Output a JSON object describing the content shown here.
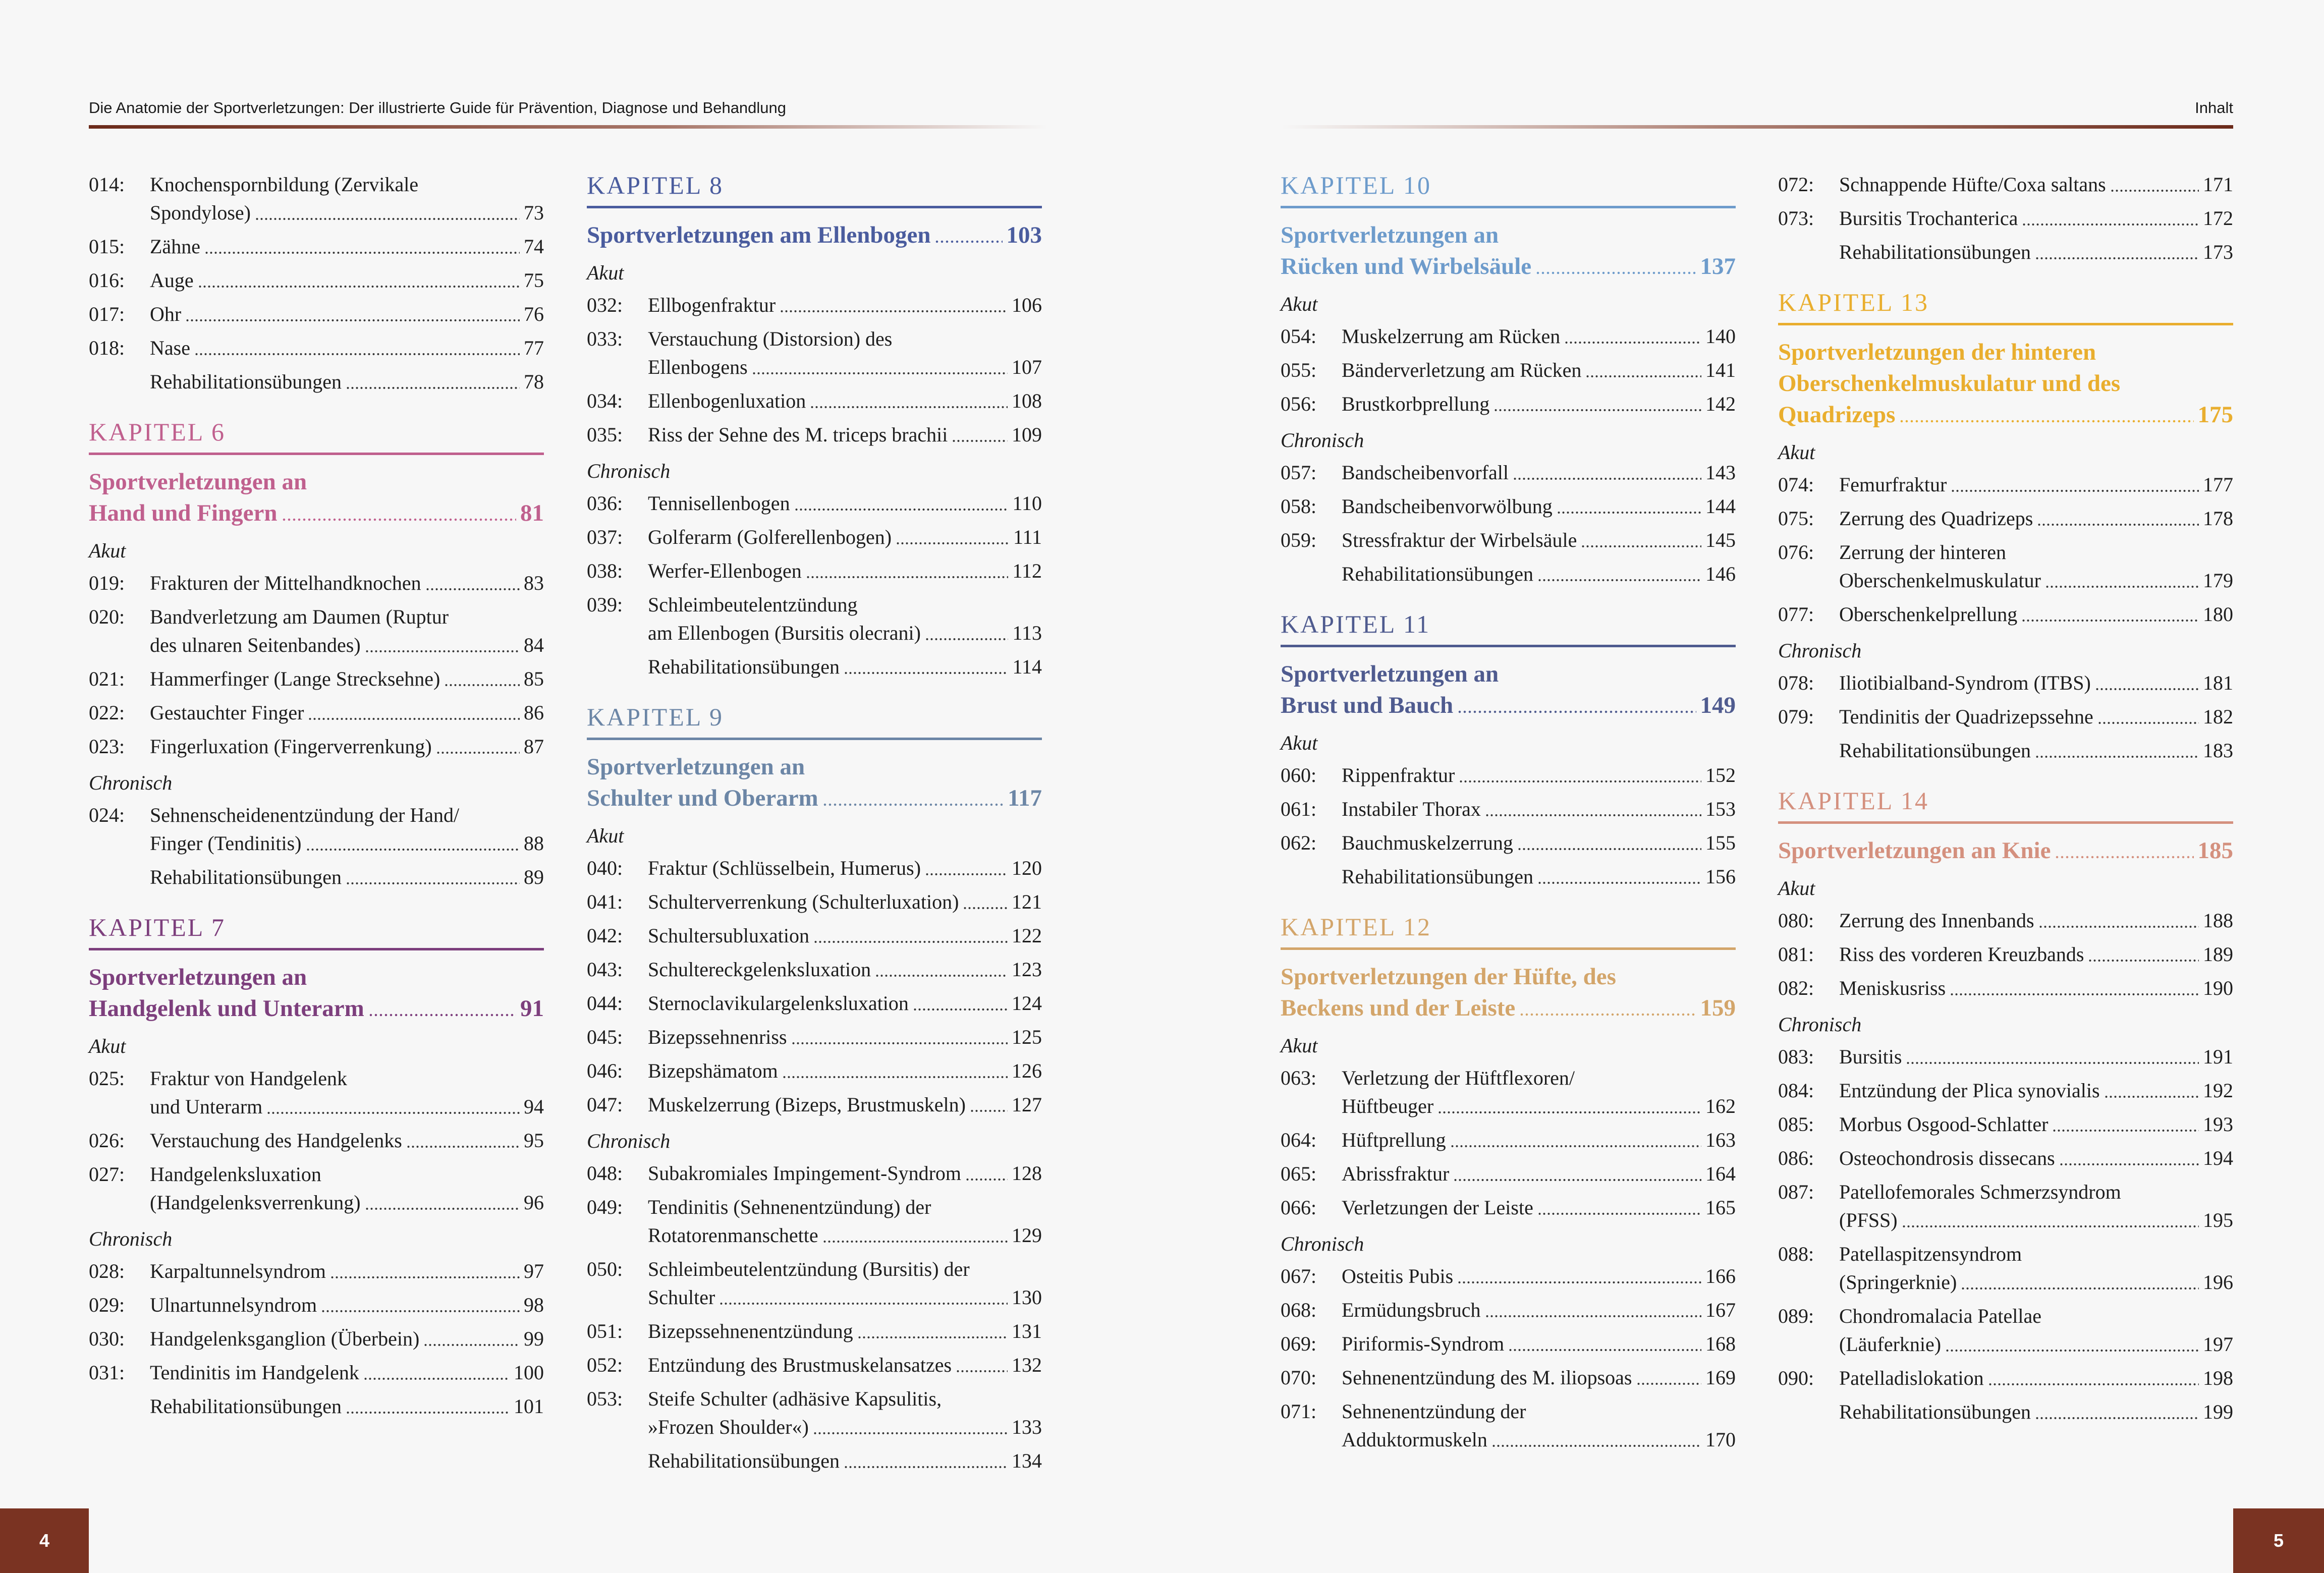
{
  "header": {
    "book_title": "Die Anatomie der Sportverletzungen: Der illustrierte Guide für Prävention, Diagnose und Behandlung",
    "section": "Inhalt",
    "rule_color": "#6b2a1a"
  },
  "page_numbers": {
    "left": "4",
    "right": "5"
  },
  "columns": [
    {
      "blocks": [
        {
          "type": "entry",
          "num": "014:",
          "lines": [
            "Knochenspornbildung (Zervikale",
            "Spondylose)"
          ],
          "page": "73"
        },
        {
          "type": "entry",
          "num": "015:",
          "lines": [
            "Zähne"
          ],
          "page": "74"
        },
        {
          "type": "entry",
          "num": "016:",
          "lines": [
            "Auge"
          ],
          "page": "75"
        },
        {
          "type": "entry",
          "num": "017:",
          "lines": [
            "Ohr"
          ],
          "page": "76"
        },
        {
          "type": "entry",
          "num": "018:",
          "lines": [
            "Nase"
          ],
          "page": "77"
        },
        {
          "type": "entry",
          "num": "",
          "lines": [
            "Rehabilitationsübungen"
          ],
          "page": "78"
        },
        {
          "type": "chapter",
          "label": "KAPITEL 6",
          "color": "#c0608e",
          "title": [
            "Sportverletzungen an",
            "Hand und Fingern"
          ],
          "page": "81"
        },
        {
          "type": "sub",
          "label": "Akut"
        },
        {
          "type": "entry",
          "num": "019:",
          "lines": [
            "Frakturen der Mittelhandknochen"
          ],
          "page": "83"
        },
        {
          "type": "entry",
          "num": "020:",
          "lines": [
            "Bandverletzung am Daumen (Ruptur",
            "des ulnaren Seitenbandes)"
          ],
          "page": "84"
        },
        {
          "type": "entry",
          "num": "021:",
          "lines": [
            "Hammerfinger (Lange Strecksehne)"
          ],
          "page": "85"
        },
        {
          "type": "entry",
          "num": "022:",
          "lines": [
            "Gestauchter Finger"
          ],
          "page": "86"
        },
        {
          "type": "entry",
          "num": "023:",
          "lines": [
            "Fingerluxation (Fingerverrenkung)"
          ],
          "page": "87"
        },
        {
          "type": "sub",
          "label": "Chronisch"
        },
        {
          "type": "entry",
          "num": "024:",
          "lines": [
            "Sehnenscheidenentzündung der Hand/",
            "Finger (Tendinitis)"
          ],
          "page": "88"
        },
        {
          "type": "entry",
          "num": "",
          "lines": [
            "Rehabilitationsübungen"
          ],
          "page": "89"
        },
        {
          "type": "chapter",
          "label": "KAPITEL 7",
          "color": "#7d3f7d",
          "title": [
            "Sportverletzungen an",
            "Handgelenk und Unterarm"
          ],
          "page": "91"
        },
        {
          "type": "sub",
          "label": "Akut"
        },
        {
          "type": "entry",
          "num": "025:",
          "lines": [
            "Fraktur von Handgelenk",
            "und Unterarm"
          ],
          "page": "94"
        },
        {
          "type": "entry",
          "num": "026:",
          "lines": [
            "Verstauchung des Handgelenks"
          ],
          "page": "95"
        },
        {
          "type": "entry",
          "num": "027:",
          "lines": [
            "Handgelenksluxation",
            "(Handgelenksverrenkung)"
          ],
          "page": "96"
        },
        {
          "type": "sub",
          "label": "Chronisch"
        },
        {
          "type": "entry",
          "num": "028:",
          "lines": [
            "Karpaltunnelsyndrom"
          ],
          "page": "97"
        },
        {
          "type": "entry",
          "num": "029:",
          "lines": [
            "Ulnartunnelsyndrom"
          ],
          "page": "98"
        },
        {
          "type": "entry",
          "num": "030:",
          "lines": [
            "Handgelenksganglion (Überbein)"
          ],
          "page": "99"
        },
        {
          "type": "entry",
          "num": "031:",
          "lines": [
            "Tendinitis im Handgelenk"
          ],
          "page": "100"
        },
        {
          "type": "entry",
          "num": "",
          "lines": [
            "Rehabilitationsübungen"
          ],
          "page": "101"
        }
      ]
    },
    {
      "blocks": [
        {
          "type": "chapter",
          "label": "KAPITEL 8",
          "color": "#4a5c9e",
          "title": [
            "Sportverletzungen am Ellenbogen"
          ],
          "page": "103"
        },
        {
          "type": "sub",
          "label": "Akut"
        },
        {
          "type": "entry",
          "num": "032:",
          "lines": [
            "Ellbogenfraktur"
          ],
          "page": "106"
        },
        {
          "type": "entry",
          "num": "033:",
          "lines": [
            "Verstauchung (Distorsion) des",
            "Ellenbogens"
          ],
          "page": "107"
        },
        {
          "type": "entry",
          "num": "034:",
          "lines": [
            "Ellenbogenluxation"
          ],
          "page": "108"
        },
        {
          "type": "entry",
          "num": "035:",
          "lines": [
            "Riss der Sehne des M. triceps brachii"
          ],
          "page": "109"
        },
        {
          "type": "sub",
          "label": "Chronisch"
        },
        {
          "type": "entry",
          "num": "036:",
          "lines": [
            "Tennisellenbogen"
          ],
          "page": "110"
        },
        {
          "type": "entry",
          "num": "037:",
          "lines": [
            "Golferarm (Golferellenbogen)"
          ],
          "page": "111"
        },
        {
          "type": "entry",
          "num": "038:",
          "lines": [
            "Werfer-Ellenbogen"
          ],
          "page": "112"
        },
        {
          "type": "entry",
          "num": "039:",
          "lines": [
            "Schleimbeutelentzündung",
            "am Ellenbogen (Bursitis olecrani)"
          ],
          "page": "113"
        },
        {
          "type": "entry",
          "num": "",
          "lines": [
            "Rehabilitationsübungen"
          ],
          "page": "114"
        },
        {
          "type": "chapter",
          "label": "KAPITEL 9",
          "color": "#6c86a6",
          "title": [
            "Sportverletzungen an",
            "Schulter und Oberarm"
          ],
          "page": "117"
        },
        {
          "type": "sub",
          "label": "Akut"
        },
        {
          "type": "entry",
          "num": "040:",
          "lines": [
            "Fraktur (Schlüsselbein, Humerus)"
          ],
          "page": "120"
        },
        {
          "type": "entry",
          "num": "041:",
          "lines": [
            "Schulterverrenkung (Schulterluxation)"
          ],
          "page": "121"
        },
        {
          "type": "entry",
          "num": "042:",
          "lines": [
            "Schultersubluxation"
          ],
          "page": "122"
        },
        {
          "type": "entry",
          "num": "043:",
          "lines": [
            "Schultereckgelenksluxation"
          ],
          "page": "123"
        },
        {
          "type": "entry",
          "num": "044:",
          "lines": [
            "Sternoclavikulargelenksluxation"
          ],
          "page": "124"
        },
        {
          "type": "entry",
          "num": "045:",
          "lines": [
            "Bizepssehnenriss"
          ],
          "page": "125"
        },
        {
          "type": "entry",
          "num": "046:",
          "lines": [
            "Bizepshämatom"
          ],
          "page": "126"
        },
        {
          "type": "entry",
          "num": "047:",
          "lines": [
            "Muskelzerrung (Bizeps, Brustmuskeln)"
          ],
          "page": "127"
        },
        {
          "type": "sub",
          "label": "Chronisch"
        },
        {
          "type": "entry",
          "num": "048:",
          "lines": [
            "Subakromiales Impingement-Syndrom"
          ],
          "page": "128"
        },
        {
          "type": "entry",
          "num": "049:",
          "lines": [
            "Tendinitis (Sehnenentzündung) der",
            "Rotatorenmanschette"
          ],
          "page": "129"
        },
        {
          "type": "entry",
          "num": "050:",
          "lines": [
            "Schleimbeutelentzündung (Bursitis) der",
            "Schulter"
          ],
          "page": "130"
        },
        {
          "type": "entry",
          "num": "051:",
          "lines": [
            "Bizepssehnenentzündung"
          ],
          "page": "131"
        },
        {
          "type": "entry",
          "num": "052:",
          "lines": [
            "Entzündung des Brustmuskelansatzes"
          ],
          "page": "132"
        },
        {
          "type": "entry",
          "num": "053:",
          "lines": [
            "Steife Schulter (adhäsive Kapsulitis,",
            "»Frozen Shoulder«)"
          ],
          "page": "133"
        },
        {
          "type": "entry",
          "num": "",
          "lines": [
            "Rehabilitationsübungen"
          ],
          "page": "134"
        }
      ]
    },
    {
      "blocks": [
        {
          "type": "chapter",
          "label": "KAPITEL 10",
          "color": "#6d9bcb",
          "title": [
            "Sportverletzungen an",
            "Rücken und Wirbelsäule"
          ],
          "page": "137"
        },
        {
          "type": "sub",
          "label": "Akut"
        },
        {
          "type": "entry",
          "num": "054:",
          "lines": [
            "Muskelzerrung am Rücken"
          ],
          "page": "140"
        },
        {
          "type": "entry",
          "num": "055:",
          "lines": [
            "Bänderverletzung am Rücken"
          ],
          "page": "141"
        },
        {
          "type": "entry",
          "num": "056:",
          "lines": [
            "Brustkorbprellung"
          ],
          "page": "142"
        },
        {
          "type": "sub",
          "label": "Chronisch"
        },
        {
          "type": "entry",
          "num": "057:",
          "lines": [
            "Bandscheibenvorfall"
          ],
          "page": "143"
        },
        {
          "type": "entry",
          "num": "058:",
          "lines": [
            "Bandscheibenvorwölbung"
          ],
          "page": "144"
        },
        {
          "type": "entry",
          "num": "059:",
          "lines": [
            "Stressfraktur der Wirbelsäule"
          ],
          "page": "145"
        },
        {
          "type": "entry",
          "num": "",
          "lines": [
            "Rehabilitationsübungen"
          ],
          "page": "146"
        },
        {
          "type": "chapter",
          "label": "KAPITEL 11",
          "color": "#4f5b8f",
          "title": [
            "Sportverletzungen an",
            "Brust und Bauch"
          ],
          "page": "149"
        },
        {
          "type": "sub",
          "label": "Akut"
        },
        {
          "type": "entry",
          "num": "060:",
          "lines": [
            "Rippenfraktur"
          ],
          "page": "152"
        },
        {
          "type": "entry",
          "num": "061:",
          "lines": [
            "Instabiler Thorax"
          ],
          "page": "153"
        },
        {
          "type": "entry",
          "num": "062:",
          "lines": [
            "Bauchmuskelzerrung"
          ],
          "page": "155"
        },
        {
          "type": "entry",
          "num": "",
          "lines": [
            "Rehabilitationsübungen"
          ],
          "page": "156"
        },
        {
          "type": "chapter",
          "label": "KAPITEL 12",
          "color": "#d3a56a",
          "title": [
            "Sportverletzungen der Hüfte, des",
            "Beckens und der Leiste"
          ],
          "page": "159"
        },
        {
          "type": "sub",
          "label": "Akut"
        },
        {
          "type": "entry",
          "num": "063:",
          "lines": [
            "Verletzung der Hüftflexoren/",
            "Hüftbeuger"
          ],
          "page": "162"
        },
        {
          "type": "entry",
          "num": "064:",
          "lines": [
            "Hüftprellung"
          ],
          "page": "163"
        },
        {
          "type": "entry",
          "num": "065:",
          "lines": [
            "Abrissfraktur"
          ],
          "page": "164"
        },
        {
          "type": "entry",
          "num": "066:",
          "lines": [
            "Verletzungen der Leiste"
          ],
          "page": "165"
        },
        {
          "type": "sub",
          "label": "Chronisch"
        },
        {
          "type": "entry",
          "num": "067:",
          "lines": [
            "Osteitis Pubis"
          ],
          "page": "166"
        },
        {
          "type": "entry",
          "num": "068:",
          "lines": [
            "Ermüdungsbruch"
          ],
          "page": "167"
        },
        {
          "type": "entry",
          "num": "069:",
          "lines": [
            "Piriformis-Syndrom"
          ],
          "page": "168"
        },
        {
          "type": "entry",
          "num": "070:",
          "lines": [
            "Sehnenentzündung des M. iliopsoas"
          ],
          "page": "169"
        },
        {
          "type": "entry",
          "num": "071:",
          "lines": [
            "Sehnenentzündung der",
            "Adduktormuskeln"
          ],
          "page": "170"
        }
      ]
    },
    {
      "blocks": [
        {
          "type": "entry",
          "num": "072:",
          "lines": [
            "Schnappende Hüfte/Coxa saltans"
          ],
          "page": "171"
        },
        {
          "type": "entry",
          "num": "073:",
          "lines": [
            "Bursitis Trochanterica"
          ],
          "page": "172"
        },
        {
          "type": "entry",
          "num": "",
          "lines": [
            "Rehabilitationsübungen"
          ],
          "page": "173"
        },
        {
          "type": "chapter",
          "label": "KAPITEL 13",
          "color": "#e9ae2e",
          "title": [
            "Sportverletzungen der hinteren",
            "Oberschenkelmuskulatur und des",
            "Quadrizeps"
          ],
          "page": "175"
        },
        {
          "type": "sub",
          "label": "Akut"
        },
        {
          "type": "entry",
          "num": "074:",
          "lines": [
            "Femurfraktur"
          ],
          "page": "177"
        },
        {
          "type": "entry",
          "num": "075:",
          "lines": [
            "Zerrung des Quadrizeps"
          ],
          "page": "178"
        },
        {
          "type": "entry",
          "num": "076:",
          "lines": [
            "Zerrung der hinteren",
            "Oberschenkelmuskulatur"
          ],
          "page": "179"
        },
        {
          "type": "entry",
          "num": "077:",
          "lines": [
            "Oberschenkelprellung"
          ],
          "page": "180"
        },
        {
          "type": "sub",
          "label": "Chronisch"
        },
        {
          "type": "entry",
          "num": "078:",
          "lines": [
            "Iliotibialband-Syndrom (ITBS)"
          ],
          "page": "181"
        },
        {
          "type": "entry",
          "num": "079:",
          "lines": [
            "Tendinitis der Quadrizepssehne"
          ],
          "page": "182"
        },
        {
          "type": "entry",
          "num": "",
          "lines": [
            "Rehabilitationsübungen"
          ],
          "page": "183"
        },
        {
          "type": "chapter",
          "label": "KAPITEL 14",
          "color": "#d4907e",
          "title": [
            "Sportverletzungen an Knie"
          ],
          "page": "185"
        },
        {
          "type": "sub",
          "label": "Akut"
        },
        {
          "type": "entry",
          "num": "080:",
          "lines": [
            "Zerrung des Innenbands"
          ],
          "page": "188"
        },
        {
          "type": "entry",
          "num": "081:",
          "lines": [
            "Riss des vorderen Kreuzbands"
          ],
          "page": "189"
        },
        {
          "type": "entry",
          "num": "082:",
          "lines": [
            "Meniskusriss"
          ],
          "page": "190"
        },
        {
          "type": "sub",
          "label": "Chronisch"
        },
        {
          "type": "entry",
          "num": "083:",
          "lines": [
            "Bursitis"
          ],
          "page": "191"
        },
        {
          "type": "entry",
          "num": "084:",
          "lines": [
            "Entzündung der Plica synovialis"
          ],
          "page": "192"
        },
        {
          "type": "entry",
          "num": "085:",
          "lines": [
            "Morbus Osgood-Schlatter"
          ],
          "page": "193"
        },
        {
          "type": "entry",
          "num": "086:",
          "lines": [
            "Osteochondrosis dissecans"
          ],
          "page": "194"
        },
        {
          "type": "entry",
          "num": "087:",
          "lines": [
            "Patellofemorales Schmerzsyndrom",
            "(PFSS)"
          ],
          "page": "195"
        },
        {
          "type": "entry",
          "num": "088:",
          "lines": [
            "Patellaspitzensyndrom",
            "(Springerknie)"
          ],
          "page": "196"
        },
        {
          "type": "entry",
          "num": "089:",
          "lines": [
            "Chondromalacia Patellae",
            "(Läuferknie)"
          ],
          "page": "197"
        },
        {
          "type": "entry",
          "num": "090:",
          "lines": [
            "Patelladislokation"
          ],
          "page": "198"
        },
        {
          "type": "entry",
          "num": "",
          "lines": [
            "Rehabilitationsübungen"
          ],
          "page": "199"
        }
      ]
    }
  ]
}
